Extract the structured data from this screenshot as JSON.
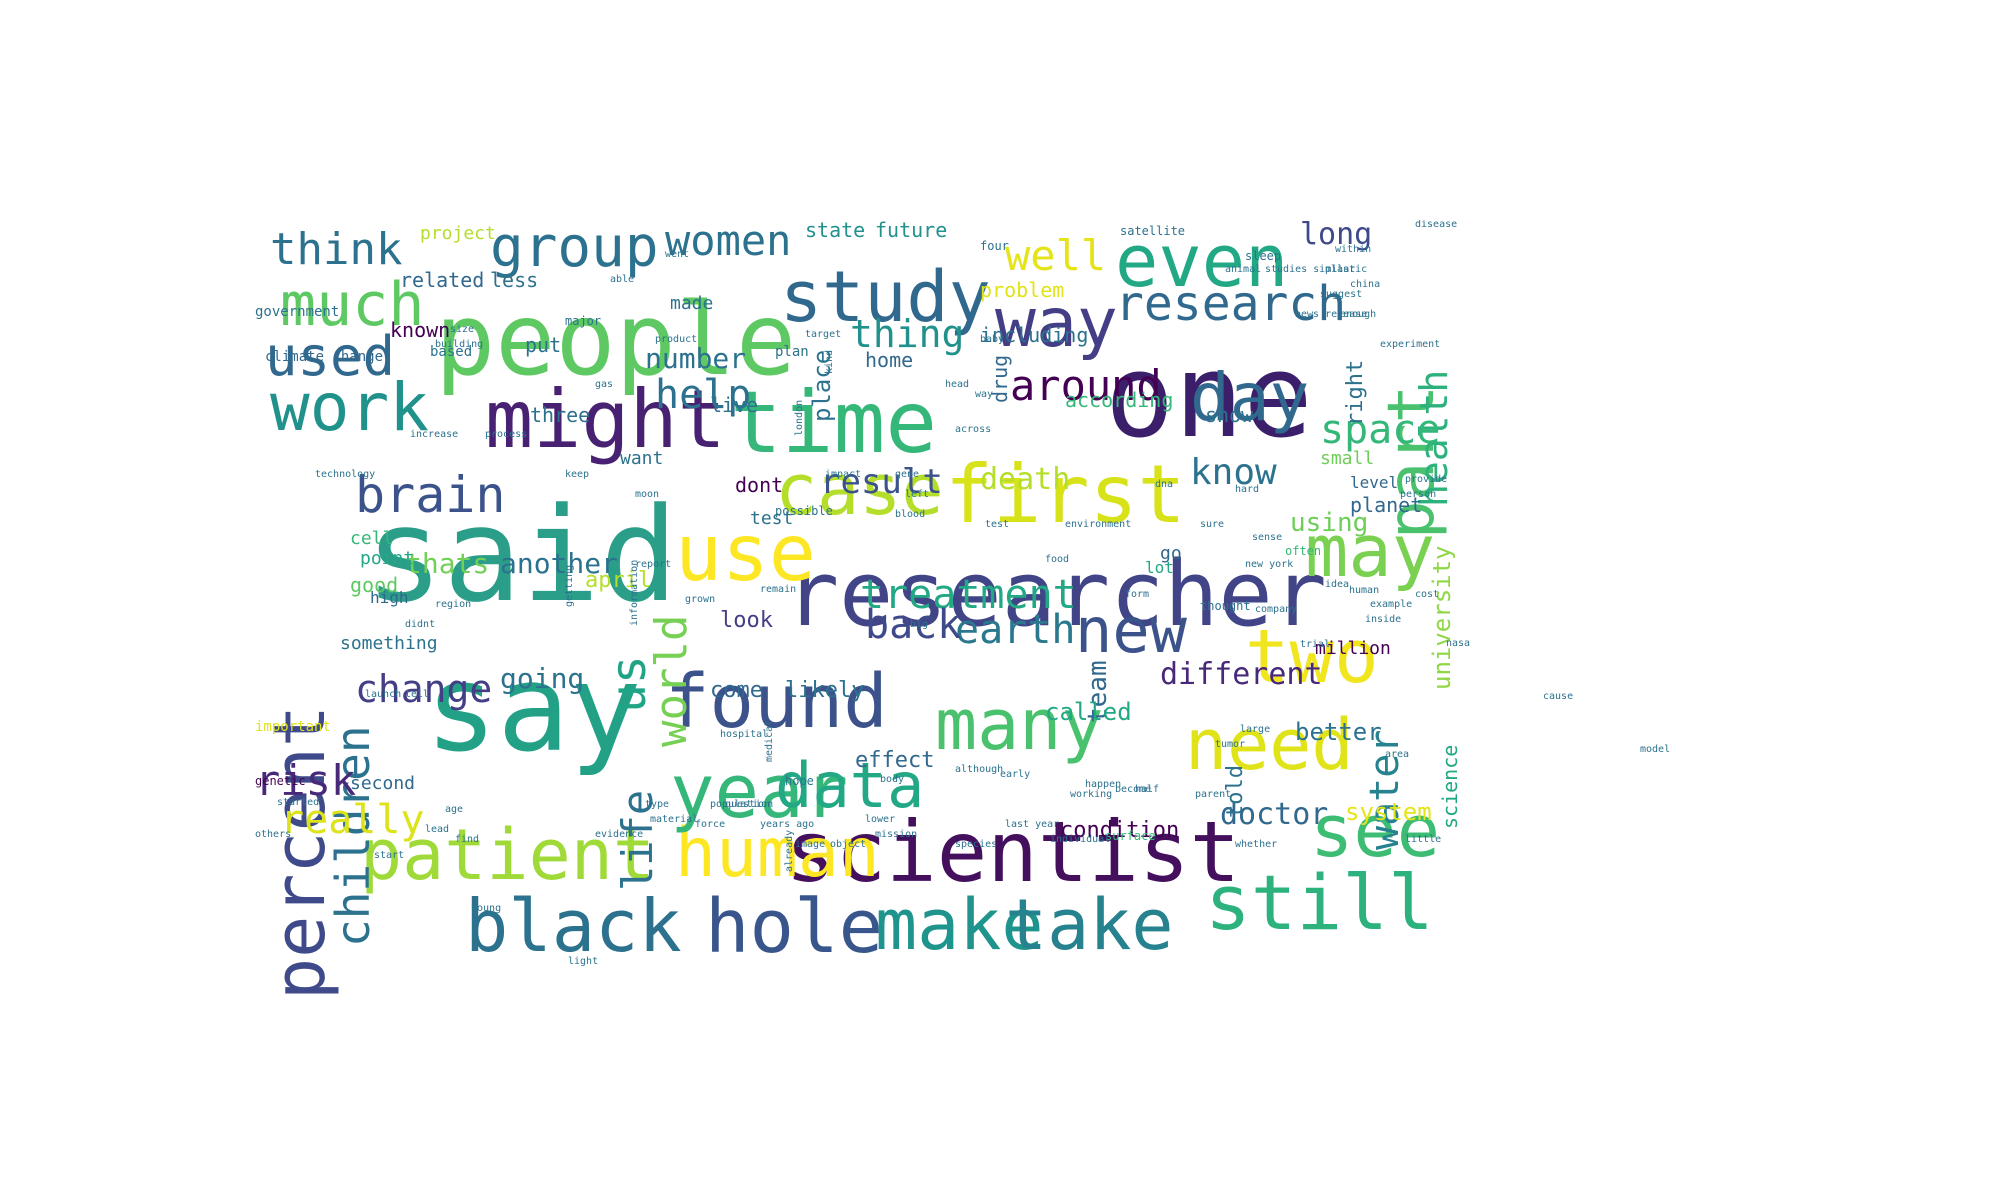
{
  "word_cloud": {
    "words": [
      {
        "text": "said",
        "color": "#2a9e88"
      },
      {
        "text": "say",
        "color": "#23a186"
      },
      {
        "text": "people",
        "color": "#5ec962"
      },
      {
        "text": "one",
        "color": "#3b1f6b"
      },
      {
        "text": "researcher",
        "color": "#414487"
      },
      {
        "text": "scientist",
        "color": "#440f5d"
      },
      {
        "text": "time",
        "color": "#35b779"
      },
      {
        "text": "first",
        "color": "#d7e219"
      },
      {
        "text": "might",
        "color": "#482173"
      },
      {
        "text": "found",
        "color": "#3b528b"
      },
      {
        "text": "study",
        "color": "#31688e"
      },
      {
        "text": "hole",
        "color": "#39568c"
      },
      {
        "text": "make",
        "color": "#1f948c"
      },
      {
        "text": "take",
        "color": "#26828e"
      },
      {
        "text": "black",
        "color": "#2c728e"
      },
      {
        "text": "human",
        "color": "#fde725"
      },
      {
        "text": "patient",
        "color": "#a0da39"
      },
      {
        "text": "year",
        "color": "#35b779"
      },
      {
        "text": "data",
        "color": "#22a884"
      },
      {
        "text": "case",
        "color": "#b5de2b"
      },
      {
        "text": "percent",
        "color": "#3e4a89"
      },
      {
        "text": "use",
        "color": "#fde725"
      },
      {
        "text": "many",
        "color": "#4ac16d"
      },
      {
        "text": "need",
        "color": "#dfe318"
      },
      {
        "text": "two",
        "color": "#f1e51d"
      },
      {
        "text": "see",
        "color": "#3dbc74"
      },
      {
        "text": "still",
        "color": "#2db27d"
      },
      {
        "text": "even",
        "color": "#22a884"
      },
      {
        "text": "way",
        "color": "#433e85"
      },
      {
        "text": "part",
        "color": "#4ac16d"
      },
      {
        "text": "may",
        "color": "#7ad151"
      },
      {
        "text": "new",
        "color": "#3b528b"
      },
      {
        "text": "work",
        "color": "#21918c"
      },
      {
        "text": "much",
        "color": "#5ec962"
      },
      {
        "text": "group",
        "color": "#2c728e"
      },
      {
        "text": "day",
        "color": "#31688e"
      },
      {
        "text": "research",
        "color": "#31688e"
      },
      {
        "text": "brain",
        "color": "#3b528b"
      },
      {
        "text": "children",
        "color": "#2c728e"
      },
      {
        "text": "used",
        "color": "#31688e"
      },
      {
        "text": "us",
        "color": "#20a486"
      },
      {
        "text": "life",
        "color": "#2c728e"
      },
      {
        "text": "women",
        "color": "#2c728e"
      },
      {
        "text": "think",
        "color": "#2c728e"
      },
      {
        "text": "well",
        "color": "#e5e419"
      },
      {
        "text": "around",
        "color": "#440154"
      },
      {
        "text": "help",
        "color": "#2c728e"
      },
      {
        "text": "world",
        "color": "#75d054"
      },
      {
        "text": "health",
        "color": "#2db27d"
      },
      {
        "text": "water",
        "color": "#26828e"
      },
      {
        "text": "treatment",
        "color": "#22a884"
      },
      {
        "text": "earth",
        "color": "#2a788e"
      },
      {
        "text": "change",
        "color": "#433e85"
      },
      {
        "text": "back",
        "color": "#3e4a89"
      },
      {
        "text": "space",
        "color": "#35b779"
      },
      {
        "text": "thing",
        "color": "#21918c"
      },
      {
        "text": "risk",
        "color": "#482878"
      },
      {
        "text": "really",
        "color": "#dde318"
      },
      {
        "text": "know",
        "color": "#2c728e"
      },
      {
        "text": "result",
        "color": "#3b528b"
      },
      {
        "text": "death",
        "color": "#b5de2b"
      },
      {
        "text": "another",
        "color": "#2c728e"
      },
      {
        "text": "thats",
        "color": "#73d056"
      },
      {
        "text": "different",
        "color": "#482878"
      },
      {
        "text": "going",
        "color": "#2c728e"
      },
      {
        "text": "team",
        "color": "#31688e"
      },
      {
        "text": "university",
        "color": "#8fd744"
      },
      {
        "text": "number",
        "color": "#2c728e"
      },
      {
        "text": "long",
        "color": "#3e4a89"
      },
      {
        "text": "doctor",
        "color": "#31688e"
      },
      {
        "text": "using",
        "color": "#6ece58"
      },
      {
        "text": "system",
        "color": "#e5e419"
      },
      {
        "text": "condition",
        "color": "#440154"
      },
      {
        "text": "called",
        "color": "#22a884"
      },
      {
        "text": "come",
        "color": "#31688e"
      },
      {
        "text": "likely",
        "color": "#2c728e"
      },
      {
        "text": "look",
        "color": "#433e85"
      },
      {
        "text": "effect",
        "color": "#31688e"
      },
      {
        "text": "better",
        "color": "#2c728e"
      },
      {
        "text": "according",
        "color": "#35b779"
      },
      {
        "text": "including",
        "color": "#2c728e"
      },
      {
        "text": "problem",
        "color": "#dfe318"
      },
      {
        "text": "related",
        "color": "#31688e"
      },
      {
        "text": "less",
        "color": "#2c728e"
      },
      {
        "text": "state",
        "color": "#21918c"
      },
      {
        "text": "future",
        "color": "#21918c"
      },
      {
        "text": "made",
        "color": "#2c728e"
      },
      {
        "text": "project",
        "color": "#b5de2b"
      },
      {
        "text": "known",
        "color": "#440154"
      },
      {
        "text": "put",
        "color": "#2c728e"
      },
      {
        "text": "home",
        "color": "#31688e"
      },
      {
        "text": "live",
        "color": "#2c728e"
      },
      {
        "text": "three",
        "color": "#2c728e"
      },
      {
        "text": "dont",
        "color": "#440154"
      },
      {
        "text": "test",
        "color": "#2c728e"
      },
      {
        "text": "cell",
        "color": "#35b779"
      },
      {
        "text": "point",
        "color": "#22a884"
      },
      {
        "text": "good",
        "color": "#5ec962"
      },
      {
        "text": "april",
        "color": "#b5de2b"
      },
      {
        "text": "go",
        "color": "#31688e"
      },
      {
        "text": "lot",
        "color": "#22a884"
      },
      {
        "text": "million",
        "color": "#440154"
      },
      {
        "text": "small",
        "color": "#6ece58"
      },
      {
        "text": "show",
        "color": "#2c728e"
      },
      {
        "text": "planet",
        "color": "#31688e"
      },
      {
        "text": "level",
        "color": "#31688e"
      },
      {
        "text": "something",
        "color": "#2c728e"
      },
      {
        "text": "drug",
        "color": "#31688e"
      },
      {
        "text": "place",
        "color": "#2c728e"
      },
      {
        "text": "right",
        "color": "#2c728e"
      },
      {
        "text": "science",
        "color": "#22a884"
      },
      {
        "text": "told",
        "color": "#2c728e"
      },
      {
        "text": "second",
        "color": "#31688e"
      },
      {
        "text": "high",
        "color": "#31688e"
      },
      {
        "text": "want",
        "color": "#2c728e"
      },
      {
        "text": "plan",
        "color": "#2c728e"
      },
      {
        "text": "government",
        "color": "#2c728e"
      },
      {
        "text": "climate change",
        "color": "#31688e"
      },
      {
        "text": "based",
        "color": "#2c728e"
      },
      {
        "text": "major",
        "color": "#2c728e"
      },
      {
        "text": "possible",
        "color": "#2c728e"
      },
      {
        "text": "important",
        "color": "#dfe318"
      },
      {
        "text": "genetic",
        "color": "#440154"
      },
      {
        "text": "often",
        "color": "#35b779"
      },
      {
        "text": "thought",
        "color": "#2c728e"
      },
      {
        "text": "hope",
        "color": "#2c728e"
      },
      {
        "text": "four",
        "color": "#2c728e"
      },
      {
        "text": "satellite",
        "color": "#2c728e"
      },
      {
        "text": "sleep",
        "color": "#2c728e"
      },
      {
        "text": "disease",
        "color": "#2c728e"
      },
      {
        "text": "animal",
        "color": "#2c728e"
      },
      {
        "text": "studies similar",
        "color": "#2c728e"
      },
      {
        "text": "enough",
        "color": "#2c728e"
      },
      {
        "text": "experiment",
        "color": "#2c728e"
      },
      {
        "text": "news release",
        "color": "#2c728e"
      },
      {
        "text": "suggest",
        "color": "#2c728e"
      },
      {
        "text": "product",
        "color": "#2c728e"
      },
      {
        "text": "increase",
        "color": "#2c728e"
      },
      {
        "text": "process",
        "color": "#2c728e"
      },
      {
        "text": "technology",
        "color": "#2c728e"
      },
      {
        "text": "getting",
        "color": "#2c728e"
      },
      {
        "text": "information",
        "color": "#2c728e"
      },
      {
        "text": "evidence",
        "color": "#2c728e"
      },
      {
        "text": "mission",
        "color": "#2c728e"
      },
      {
        "text": "surface",
        "color": "#35b779"
      },
      {
        "text": "whether",
        "color": "#2c728e"
      },
      {
        "text": "already",
        "color": "#2c728e"
      },
      {
        "text": "material",
        "color": "#2c728e"
      },
      {
        "text": "years ago",
        "color": "#2c728e"
      },
      {
        "text": "population",
        "color": "#2c728e"
      },
      {
        "text": "question",
        "color": "#2c728e"
      },
      {
        "text": "individual",
        "color": "#2c728e"
      },
      {
        "text": "medical",
        "color": "#2c728e"
      },
      {
        "text": "hospital",
        "color": "#2c728e"
      },
      {
        "text": "company",
        "color": "#2c728e"
      },
      {
        "text": "example",
        "color": "#2c728e"
      },
      {
        "text": "cost",
        "color": "#2c728e"
      },
      {
        "text": "provide",
        "color": "#2c728e"
      },
      {
        "text": "person",
        "color": "#2c728e"
      },
      {
        "text": "happen",
        "color": "#2c728e"
      },
      {
        "text": "working",
        "color": "#2c728e"
      },
      {
        "text": "early",
        "color": "#2c728e"
      },
      {
        "text": "although",
        "color": "#2c728e"
      },
      {
        "text": "parent",
        "color": "#2c728e"
      },
      {
        "text": "half",
        "color": "#2c728e"
      },
      {
        "text": "last year",
        "color": "#2c728e"
      },
      {
        "text": "body",
        "color": "#2c728e"
      },
      {
        "text": "lead",
        "color": "#2c728e"
      },
      {
        "text": "find",
        "color": "#2c728e"
      },
      {
        "text": "age",
        "color": "#2c728e"
      },
      {
        "text": "image",
        "color": "#2c728e"
      },
      {
        "text": "object",
        "color": "#2c728e"
      },
      {
        "text": "type",
        "color": "#2c728e"
      },
      {
        "text": "little",
        "color": "#2c728e"
      },
      {
        "text": "within",
        "color": "#2c728e"
      },
      {
        "text": "plastic",
        "color": "#2c728e"
      },
      {
        "text": "china",
        "color": "#2c728e"
      },
      {
        "text": "size",
        "color": "#2c728e"
      },
      {
        "text": "able",
        "color": "#2c728e"
      },
      {
        "text": "target",
        "color": "#2c728e"
      },
      {
        "text": "london",
        "color": "#2c728e"
      },
      {
        "text": "baby",
        "color": "#2c728e"
      },
      {
        "text": "kind",
        "color": "#2c728e"
      },
      {
        "text": "impact",
        "color": "#2c728e"
      },
      {
        "text": "building",
        "color": "#2c728e"
      },
      {
        "text": "report",
        "color": "#2c728e"
      },
      {
        "text": "keep",
        "color": "#2c728e"
      },
      {
        "text": "new york",
        "color": "#2c728e"
      },
      {
        "text": "idea",
        "color": "#2c728e"
      },
      {
        "text": "others",
        "color": "#2c728e"
      },
      {
        "text": "region",
        "color": "#2c728e"
      },
      {
        "text": "didnt",
        "color": "#2c728e"
      },
      {
        "text": "left",
        "color": "#2c728e"
      },
      {
        "text": "tell",
        "color": "#2c728e"
      },
      {
        "text": "launch",
        "color": "#2c728e"
      },
      {
        "text": "species",
        "color": "#2c728e"
      },
      {
        "text": "remain",
        "color": "#2c728e"
      },
      {
        "text": "food",
        "color": "#2c728e"
      },
      {
        "text": "form",
        "color": "#2c728e"
      },
      {
        "text": "grown",
        "color": "#2c728e"
      },
      {
        "text": "tumor",
        "color": "#2c728e"
      },
      {
        "text": "trial",
        "color": "#2c728e"
      },
      {
        "text": "large",
        "color": "#2c728e"
      },
      {
        "text": "area",
        "color": "#2c728e"
      },
      {
        "text": "inside",
        "color": "#2c728e"
      },
      {
        "text": "hard",
        "color": "#2c728e"
      },
      {
        "text": "big",
        "color": "#2c728e"
      },
      {
        "text": "gene",
        "color": "#2c728e"
      },
      {
        "text": "blood",
        "color": "#2c728e"
      },
      {
        "text": "across",
        "color": "#2c728e"
      },
      {
        "text": "head",
        "color": "#2c728e"
      },
      {
        "text": "way",
        "color": "#2c728e"
      },
      {
        "text": "force",
        "color": "#2c728e"
      },
      {
        "text": "sure",
        "color": "#2c728e"
      },
      {
        "text": "environment",
        "color": "#2c728e"
      },
      {
        "text": "moon",
        "color": "#2c728e"
      },
      {
        "text": "gas",
        "color": "#2c728e"
      },
      {
        "text": "test",
        "color": "#2c728e"
      },
      {
        "text": "become",
        "color": "#2c728e"
      },
      {
        "text": "lower",
        "color": "#2c728e"
      },
      {
        "text": "dna",
        "color": "#2c728e"
      },
      {
        "text": "sense",
        "color": "#2c728e"
      },
      {
        "text": "human",
        "color": "#2c728e"
      },
      {
        "text": "nasa",
        "color": "#2c728e"
      },
      {
        "text": "cause",
        "color": "#2c728e"
      },
      {
        "text": "model",
        "color": "#2c728e"
      },
      {
        "text": "started",
        "color": "#2c728e"
      },
      {
        "text": "start",
        "color": "#2c728e"
      },
      {
        "text": "young",
        "color": "#2c728e"
      },
      {
        "text": "light",
        "color": "#2c728e"
      },
      {
        "text": "went",
        "color": "#2c728e"
      }
    ]
  }
}
